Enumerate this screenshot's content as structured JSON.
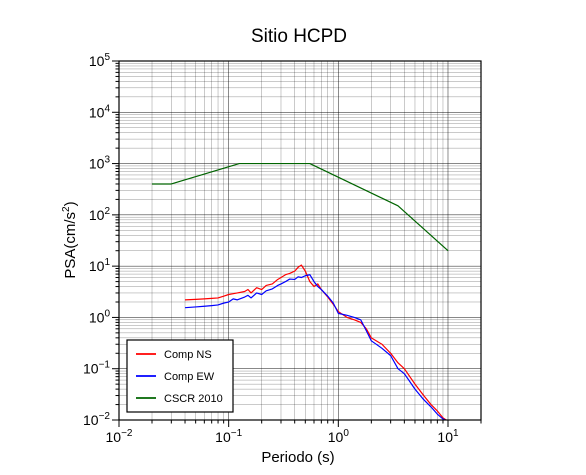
{
  "chart_data": {
    "type": "line",
    "title": "Sitio HCPD",
    "xlabel": "Periodo (s)",
    "ylabel_base": "PSA(cm/s",
    "ylabel_sup": "2",
    "ylabel_close": ")",
    "x_scale": "log",
    "y_scale": "log",
    "xlim": [
      0.01,
      20
    ],
    "ylim": [
      0.01,
      100000
    ],
    "grid": true,
    "legend_position": "bottom-left",
    "x_ticks": [
      {
        "value": 0.01,
        "base": "10",
        "exp": "−2"
      },
      {
        "value": 0.1,
        "base": "10",
        "exp": "−1"
      },
      {
        "value": 1,
        "base": "10",
        "exp": "0"
      },
      {
        "value": 10,
        "base": "10",
        "exp": "1"
      }
    ],
    "y_ticks": [
      {
        "value": 0.01,
        "base": "10",
        "exp": "−2"
      },
      {
        "value": 0.1,
        "base": "10",
        "exp": "−1"
      },
      {
        "value": 1,
        "base": "10",
        "exp": "0"
      },
      {
        "value": 10,
        "base": "10",
        "exp": "1"
      },
      {
        "value": 100,
        "base": "10",
        "exp": "2"
      },
      {
        "value": 1000,
        "base": "10",
        "exp": "3"
      },
      {
        "value": 10000,
        "base": "10",
        "exp": "4"
      },
      {
        "value": 100000,
        "base": "10",
        "exp": "5"
      }
    ],
    "series": [
      {
        "name": "Comp NS",
        "color": "#ff0000",
        "points": [
          [
            0.04,
            2.2
          ],
          [
            0.05,
            2.25
          ],
          [
            0.06,
            2.3
          ],
          [
            0.07,
            2.35
          ],
          [
            0.08,
            2.4
          ],
          [
            0.09,
            2.6
          ],
          [
            0.1,
            2.8
          ],
          [
            0.12,
            3.0
          ],
          [
            0.14,
            3.2
          ],
          [
            0.15,
            3.5
          ],
          [
            0.16,
            3.0
          ],
          [
            0.18,
            3.8
          ],
          [
            0.2,
            3.5
          ],
          [
            0.22,
            4.2
          ],
          [
            0.25,
            4.5
          ],
          [
            0.28,
            5.5
          ],
          [
            0.3,
            6.0
          ],
          [
            0.33,
            6.8
          ],
          [
            0.36,
            7.2
          ],
          [
            0.4,
            8.0
          ],
          [
            0.43,
            9.5
          ],
          [
            0.46,
            10.5
          ],
          [
            0.5,
            8.0
          ],
          [
            0.55,
            5.0
          ],
          [
            0.6,
            4.0
          ],
          [
            0.65,
            4.5
          ],
          [
            0.7,
            3.5
          ],
          [
            0.8,
            2.5
          ],
          [
            0.9,
            1.8
          ],
          [
            1.0,
            1.3
          ],
          [
            1.2,
            1.0
          ],
          [
            1.4,
            0.9
          ],
          [
            1.6,
            0.8
          ],
          [
            1.8,
            0.6
          ],
          [
            2.0,
            0.4
          ],
          [
            2.5,
            0.3
          ],
          [
            3.0,
            0.2
          ],
          [
            3.5,
            0.13
          ],
          [
            4.0,
            0.1
          ],
          [
            5.0,
            0.05
          ],
          [
            6.0,
            0.03
          ],
          [
            7.0,
            0.02
          ],
          [
            8.0,
            0.015
          ],
          [
            9.0,
            0.011
          ],
          [
            10.0,
            0.0095
          ]
        ]
      },
      {
        "name": "Comp EW",
        "color": "#0000ff",
        "points": [
          [
            0.04,
            1.55
          ],
          [
            0.05,
            1.6
          ],
          [
            0.06,
            1.65
          ],
          [
            0.07,
            1.7
          ],
          [
            0.08,
            1.75
          ],
          [
            0.09,
            1.9
          ],
          [
            0.1,
            2.0
          ],
          [
            0.11,
            2.3
          ],
          [
            0.12,
            2.2
          ],
          [
            0.14,
            2.5
          ],
          [
            0.15,
            2.7
          ],
          [
            0.16,
            2.4
          ],
          [
            0.18,
            3.0
          ],
          [
            0.2,
            2.8
          ],
          [
            0.22,
            3.3
          ],
          [
            0.25,
            3.6
          ],
          [
            0.28,
            4.2
          ],
          [
            0.3,
            4.5
          ],
          [
            0.33,
            5.0
          ],
          [
            0.36,
            5.6
          ],
          [
            0.4,
            5.5
          ],
          [
            0.43,
            6.2
          ],
          [
            0.46,
            6.0
          ],
          [
            0.5,
            6.5
          ],
          [
            0.55,
            6.8
          ],
          [
            0.6,
            5.0
          ],
          [
            0.65,
            4.0
          ],
          [
            0.7,
            3.5
          ],
          [
            0.8,
            2.6
          ],
          [
            0.9,
            1.9
          ],
          [
            1.0,
            1.2
          ],
          [
            1.2,
            1.1
          ],
          [
            1.4,
            1.0
          ],
          [
            1.6,
            0.9
          ],
          [
            1.8,
            0.55
          ],
          [
            2.0,
            0.35
          ],
          [
            2.5,
            0.25
          ],
          [
            3.0,
            0.18
          ],
          [
            3.5,
            0.1
          ],
          [
            4.0,
            0.08
          ],
          [
            5.0,
            0.04
          ],
          [
            6.0,
            0.025
          ],
          [
            7.0,
            0.018
          ],
          [
            8.0,
            0.013
          ],
          [
            9.0,
            0.0105
          ],
          [
            10.0,
            0.0095
          ]
        ]
      },
      {
        "name": "CSCR 2010",
        "color": "#006400",
        "points": [
          [
            0.02,
            400
          ],
          [
            0.03,
            400
          ],
          [
            0.125,
            1000
          ],
          [
            0.55,
            1000
          ],
          [
            3.5,
            150
          ],
          [
            10,
            20
          ]
        ]
      }
    ]
  }
}
